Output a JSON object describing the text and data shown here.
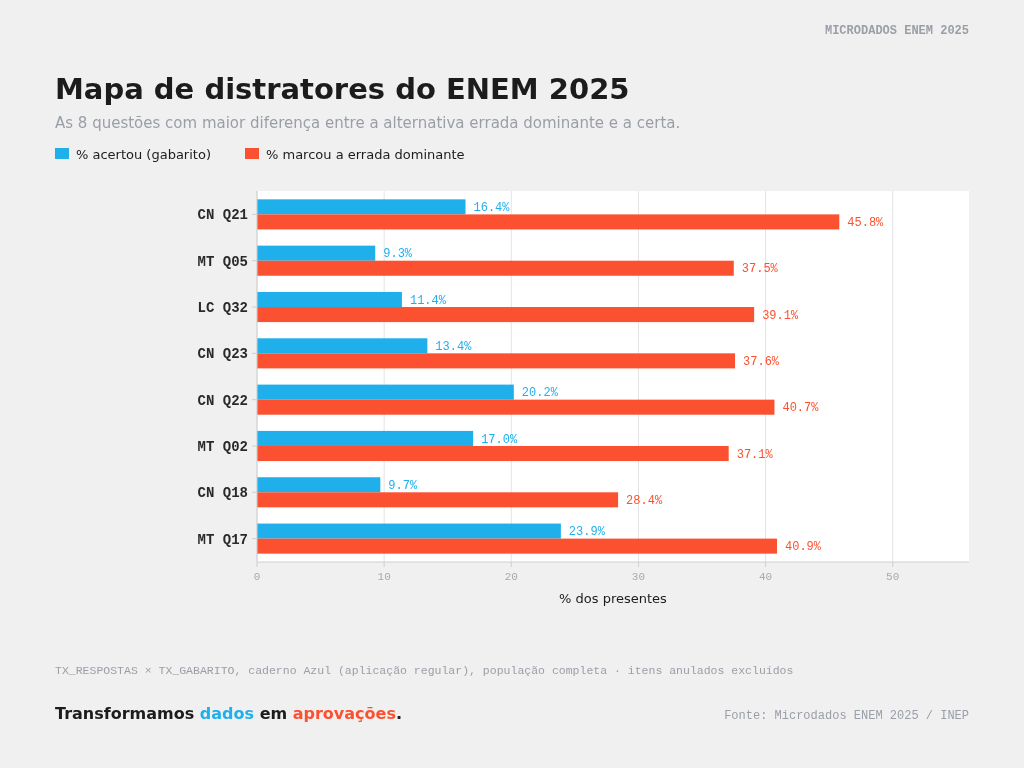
{
  "chart_data": {
    "type": "bar",
    "orientation": "horizontal",
    "title": "Mapa de distratores do ENEM 2025",
    "subtitle": "As 8 questões com maior diferença entre a alternativa errada dominante e a certa.",
    "xlabel": "% dos presentes",
    "categories": [
      "CN Q21",
      "MT Q05",
      "LC Q32",
      "CN Q23",
      "CN Q22",
      "MT Q02",
      "CN Q18",
      "MT Q17"
    ],
    "series": [
      {
        "name": "% acertou (gabarito)",
        "color": "#1fb0ec",
        "values": [
          16.4,
          9.3,
          11.4,
          13.4,
          20.2,
          17.0,
          9.7,
          23.9
        ],
        "value_labels": [
          "16.4%",
          "9.3%",
          "11.4%",
          "13.4%",
          "20.2%",
          "17.0%",
          "9.7%",
          "23.9%"
        ]
      },
      {
        "name": "% marcou a errada dominante",
        "color": "#fc5130",
        "values": [
          45.8,
          37.5,
          39.1,
          37.6,
          40.7,
          37.1,
          28.4,
          40.9
        ],
        "value_labels": [
          "45.8%",
          "37.5%",
          "39.1%",
          "37.6%",
          "40.7%",
          "37.1%",
          "28.4%",
          "40.9%"
        ]
      }
    ],
    "xlim": [
      0,
      56
    ],
    "xticks": [
      0,
      10,
      20,
      30,
      40,
      50
    ],
    "grid": "x",
    "legend": "top left",
    "annotations": [
      "MICRODADOS ENEM 2025",
      "TX_RESPOSTAS × TX_GABARITO, caderno Azul (aplicação regular), população completa · itens anulados excluídos",
      "Transformamos dados em aprovações.",
      "Fonte: Microdados ENEM 2025 / INEP"
    ]
  }
}
